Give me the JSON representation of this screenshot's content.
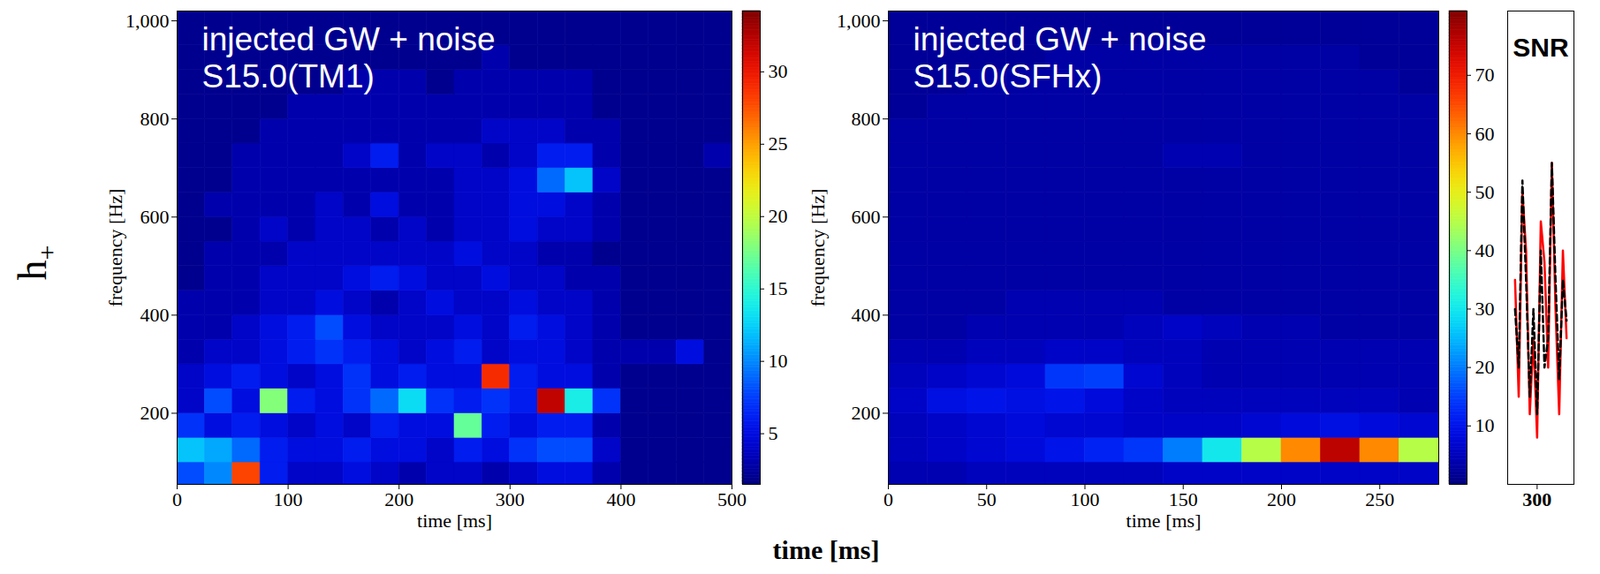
{
  "chart_data": [
    {
      "type": "heatmap",
      "annotation": "injected GW + noise\nS15.0(TM1)",
      "x_label": "time [ms]",
      "y_label": "frequency [Hz]",
      "xlim": [
        0,
        500
      ],
      "xticks": [
        0,
        100,
        200,
        300,
        400,
        500
      ],
      "ylim": [
        55,
        1020
      ],
      "yticks": [
        200,
        400,
        600,
        800,
        1000
      ],
      "x_edges": [
        0,
        25,
        50,
        75,
        100,
        125,
        150,
        175,
        200,
        225,
        250,
        275,
        300,
        325,
        350,
        375,
        400,
        425,
        450,
        475,
        500
      ],
      "y_edges": [
        50,
        100,
        150,
        200,
        250,
        300,
        350,
        400,
        450,
        500,
        550,
        600,
        650,
        700,
        750,
        800,
        850,
        900,
        950,
        1020
      ],
      "z": [
        [
          8,
          10,
          28,
          6,
          4,
          4,
          5,
          4,
          3,
          4,
          4,
          3,
          4,
          5,
          5,
          3,
          2,
          2,
          2,
          2
        ],
        [
          12,
          11,
          9,
          6,
          5,
          5,
          6,
          5,
          5,
          4,
          6,
          5,
          7,
          8,
          8,
          4,
          2,
          2,
          2,
          2
        ],
        [
          7,
          5,
          6,
          5,
          4,
          5,
          4,
          6,
          5,
          5,
          17,
          6,
          5,
          6,
          6,
          3,
          2,
          2,
          2,
          2
        ],
        [
          4,
          8,
          5,
          18,
          6,
          5,
          7,
          9,
          13,
          7,
          6,
          7,
          6,
          32,
          14,
          7,
          2,
          2,
          2,
          2
        ],
        [
          4,
          5,
          6,
          5,
          4,
          5,
          7,
          5,
          6,
          5,
          5,
          29,
          6,
          5,
          5,
          3,
          2,
          2,
          2,
          2
        ],
        [
          3,
          4,
          4,
          5,
          6,
          7,
          6,
          5,
          4,
          5,
          6,
          4,
          5,
          5,
          4,
          3,
          3,
          3,
          5,
          2
        ],
        [
          3,
          3,
          4,
          5,
          6,
          8,
          5,
          4,
          4,
          4,
          5,
          4,
          6,
          5,
          4,
          3,
          2,
          2,
          2,
          2
        ],
        [
          3,
          3,
          3,
          4,
          4,
          5,
          4,
          3,
          4,
          5,
          4,
          4,
          5,
          4,
          4,
          3,
          2,
          2,
          2,
          2
        ],
        [
          2,
          3,
          3,
          4,
          4,
          4,
          5,
          6,
          5,
          4,
          4,
          5,
          4,
          4,
          3,
          3,
          2,
          2,
          2,
          2
        ],
        [
          2,
          3,
          3,
          3,
          4,
          4,
          4,
          4,
          4,
          4,
          5,
          4,
          4,
          3,
          3,
          2,
          2,
          2,
          2,
          2
        ],
        [
          2,
          2,
          3,
          4,
          3,
          4,
          4,
          3,
          4,
          3,
          4,
          4,
          5,
          4,
          4,
          3,
          2,
          2,
          2,
          2
        ],
        [
          2,
          3,
          3,
          3,
          3,
          4,
          3,
          5,
          3,
          3,
          4,
          4,
          5,
          5,
          4,
          3,
          2,
          2,
          2,
          2
        ],
        [
          2,
          2,
          3,
          3,
          3,
          3,
          3,
          3,
          3,
          3,
          4,
          4,
          5,
          9,
          12,
          4,
          2,
          2,
          2,
          2
        ],
        [
          2,
          2,
          3,
          3,
          3,
          3,
          4,
          6,
          3,
          4,
          4,
          3,
          4,
          6,
          6,
          3,
          2,
          2,
          2,
          3
        ],
        [
          2,
          2,
          2,
          3,
          3,
          3,
          3,
          3,
          3,
          3,
          3,
          4,
          4,
          4,
          3,
          3,
          2,
          2,
          2,
          2
        ],
        [
          2,
          2,
          2,
          2,
          3,
          3,
          3,
          3,
          3,
          3,
          3,
          3,
          3,
          3,
          3,
          2,
          2,
          2,
          2,
          2
        ],
        [
          2,
          2,
          2,
          2,
          2,
          2,
          3,
          3,
          3,
          2,
          3,
          3,
          3,
          3,
          3,
          2,
          2,
          2,
          2,
          2
        ],
        [
          2,
          2,
          2,
          2,
          2,
          2,
          2,
          2,
          2,
          2,
          2,
          3,
          2,
          2,
          2,
          2,
          2,
          2,
          2,
          2
        ],
        [
          2,
          2,
          2,
          2,
          2,
          2,
          2,
          2,
          2,
          2,
          2,
          2,
          2,
          2,
          2,
          2,
          2,
          2,
          2,
          2
        ]
      ],
      "colorbar": {
        "lim": [
          1.5,
          34.2
        ],
        "ticks": [
          5,
          10,
          15,
          20,
          25,
          30
        ]
      }
    },
    {
      "type": "heatmap",
      "annotation": "injected GW + noise\nS15.0(SFHx)",
      "x_label": "time [ms]",
      "y_label": "frequency [Hz]",
      "xlim": [
        0,
        280
      ],
      "xticks": [
        0,
        50,
        100,
        150,
        200,
        250
      ],
      "ylim": [
        55,
        1020
      ],
      "yticks": [
        200,
        400,
        600,
        800,
        1000
      ],
      "x_edges": [
        0,
        20,
        40,
        60,
        80,
        100,
        120,
        140,
        160,
        180,
        200,
        220,
        240,
        260,
        280
      ],
      "y_edges": [
        50,
        100,
        150,
        200,
        250,
        300,
        350,
        400,
        450,
        500,
        550,
        600,
        650,
        700,
        750,
        800,
        850,
        900,
        950,
        1020
      ],
      "z": [
        [
          4,
          4,
          5,
          5,
          5,
          5,
          5,
          6,
          6,
          6,
          6,
          6,
          6,
          6
        ],
        [
          5,
          6,
          7,
          8,
          10,
          12,
          14,
          20,
          30,
          45,
          60,
          76,
          60,
          45
        ],
        [
          5,
          6,
          7,
          8,
          7,
          7,
          6,
          6,
          6,
          7,
          8,
          9,
          8,
          7
        ],
        [
          6,
          9,
          10,
          9,
          10,
          8,
          6,
          5,
          5,
          5,
          5,
          5,
          5,
          4
        ],
        [
          5,
          6,
          7,
          8,
          14,
          15,
          7,
          5,
          4,
          4,
          4,
          4,
          4,
          4
        ],
        [
          4,
          4,
          5,
          5,
          6,
          6,
          5,
          5,
          4,
          4,
          4,
          4,
          4,
          4
        ],
        [
          3,
          3,
          4,
          4,
          4,
          4,
          5,
          6,
          5,
          4,
          4,
          3,
          3,
          3
        ],
        [
          3,
          3,
          3,
          4,
          4,
          4,
          4,
          3,
          3,
          3,
          3,
          3,
          3,
          3
        ],
        [
          3,
          3,
          3,
          3,
          3,
          3,
          3,
          3,
          3,
          3,
          3,
          3,
          3,
          3
        ],
        [
          3,
          3,
          3,
          3,
          3,
          3,
          3,
          3,
          3,
          3,
          3,
          3,
          3,
          3
        ],
        [
          3,
          3,
          3,
          3,
          3,
          3,
          3,
          3,
          3,
          3,
          3,
          3,
          3,
          3
        ],
        [
          3,
          3,
          3,
          3,
          3,
          3,
          3,
          3,
          3,
          3,
          3,
          3,
          3,
          3
        ],
        [
          3,
          3,
          3,
          3,
          3,
          3,
          3,
          3,
          3,
          3,
          3,
          3,
          3,
          3
        ],
        [
          3,
          3,
          3,
          3,
          3,
          3,
          3,
          4,
          4,
          3,
          3,
          3,
          3,
          3
        ],
        [
          3,
          3,
          3,
          3,
          3,
          3,
          3,
          3,
          3,
          3,
          3,
          3,
          3,
          3
        ],
        [
          2,
          3,
          3,
          3,
          3,
          3,
          3,
          3,
          3,
          3,
          3,
          3,
          3,
          3
        ],
        [
          2,
          2,
          3,
          3,
          3,
          3,
          3,
          3,
          3,
          3,
          3,
          3,
          3,
          2
        ],
        [
          2,
          2,
          2,
          2,
          3,
          3,
          3,
          3,
          3,
          3,
          3,
          3,
          2,
          2
        ],
        [
          2,
          2,
          2,
          2,
          2,
          2,
          2,
          2,
          2,
          2,
          2,
          2,
          2,
          2
        ]
      ],
      "colorbar": {
        "lim": [
          0,
          81
        ],
        "ticks": [
          10,
          20,
          30,
          40,
          50,
          60,
          70
        ]
      }
    },
    {
      "type": "line",
      "annotation": "SNR",
      "xlim": [
        280,
        325
      ],
      "xticks": [
        300
      ],
      "ylim": [
        0,
        81
      ],
      "tick_labels": "x",
      "x": [
        285,
        287.5,
        290,
        292.5,
        295,
        297.5,
        300,
        302.5,
        305,
        307.5,
        310,
        312.5,
        315,
        317.5,
        320
      ],
      "series": [
        {
          "color": "#ff0000",
          "line_style": "solid",
          "values": [
            35,
            15,
            50,
            40,
            12,
            25,
            8,
            45,
            38,
            20,
            55,
            30,
            12,
            40,
            25
          ]
        },
        {
          "color": "#000000",
          "line_style": "dashed",
          "values": [
            30,
            20,
            52,
            35,
            15,
            30,
            12,
            40,
            20,
            25,
            55,
            35,
            18,
            35,
            28
          ]
        }
      ]
    }
  ],
  "figure_texts": {
    "side_label": "h+",
    "bottom_label": "time [ms]"
  }
}
